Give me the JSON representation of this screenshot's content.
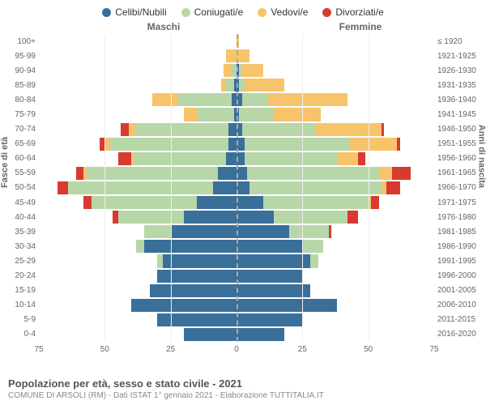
{
  "chart": {
    "type": "population-pyramid",
    "legend": [
      {
        "label": "Celibi/Nubili",
        "color": "#3a6f9a"
      },
      {
        "label": "Coniugati/e",
        "color": "#b7d7a8"
      },
      {
        "label": "Vedovi/e",
        "color": "#f7c46c"
      },
      {
        "label": "Divorziati/e",
        "color": "#d83a2f"
      }
    ],
    "header_left": "Maschi",
    "header_right": "Femmine",
    "y_axis_left_label": "Fasce di età",
    "y_axis_right_label": "Anni di nascita",
    "age_labels": [
      "100+",
      "95-99",
      "90-94",
      "85-89",
      "80-84",
      "75-79",
      "70-74",
      "65-69",
      "60-64",
      "55-59",
      "50-54",
      "45-49",
      "40-44",
      "35-39",
      "30-34",
      "25-29",
      "20-24",
      "15-19",
      "10-14",
      "5-9",
      "0-4"
    ],
    "birth_labels": [
      "≤ 1920",
      "1921-1925",
      "1926-1930",
      "1931-1935",
      "1936-1940",
      "1941-1945",
      "1946-1950",
      "1951-1955",
      "1956-1960",
      "1961-1965",
      "1966-1970",
      "1971-1975",
      "1976-1980",
      "1981-1985",
      "1986-1990",
      "1991-1995",
      "1996-2000",
      "2001-2005",
      "2006-2010",
      "2011-2015",
      "2016-2020"
    ],
    "x_ticks": [
      75,
      50,
      25,
      0,
      25,
      50,
      75
    ],
    "x_max": 75,
    "background_color": "#ffffff",
    "grid_color": "#eeeeee",
    "centerline_color": "#aaaaaa",
    "tick_fontsize": 10,
    "legend_fontsize": 12,
    "males": [
      {
        "single": 0,
        "married": 0,
        "widowed": 0,
        "divorced": 0
      },
      {
        "single": 0,
        "married": 0,
        "widowed": 4,
        "divorced": 0
      },
      {
        "single": 0,
        "married": 2,
        "widowed": 3,
        "divorced": 0
      },
      {
        "single": 1,
        "married": 3,
        "widowed": 2,
        "divorced": 0
      },
      {
        "single": 2,
        "married": 20,
        "widowed": 10,
        "divorced": 0
      },
      {
        "single": 1,
        "married": 14,
        "widowed": 5,
        "divorced": 0
      },
      {
        "single": 3,
        "married": 35,
        "widowed": 3,
        "divorced": 3
      },
      {
        "single": 3,
        "married": 45,
        "widowed": 2,
        "divorced": 2
      },
      {
        "single": 4,
        "married": 35,
        "widowed": 1,
        "divorced": 5
      },
      {
        "single": 7,
        "married": 50,
        "widowed": 1,
        "divorced": 3
      },
      {
        "single": 9,
        "married": 55,
        "widowed": 0,
        "divorced": 4
      },
      {
        "single": 15,
        "married": 40,
        "widowed": 0,
        "divorced": 3
      },
      {
        "single": 20,
        "married": 25,
        "widowed": 0,
        "divorced": 2
      },
      {
        "single": 25,
        "married": 10,
        "widowed": 0,
        "divorced": 0
      },
      {
        "single": 35,
        "married": 3,
        "widowed": 0,
        "divorced": 0
      },
      {
        "single": 28,
        "married": 2,
        "widowed": 0,
        "divorced": 0
      },
      {
        "single": 30,
        "married": 0,
        "widowed": 0,
        "divorced": 0
      },
      {
        "single": 33,
        "married": 0,
        "widowed": 0,
        "divorced": 0
      },
      {
        "single": 40,
        "married": 0,
        "widowed": 0,
        "divorced": 0
      },
      {
        "single": 30,
        "married": 0,
        "widowed": 0,
        "divorced": 0
      },
      {
        "single": 20,
        "married": 0,
        "widowed": 0,
        "divorced": 0
      }
    ],
    "females": [
      {
        "single": 0,
        "married": 0,
        "widowed": 1,
        "divorced": 0
      },
      {
        "single": 0,
        "married": 0,
        "widowed": 5,
        "divorced": 0
      },
      {
        "single": 1,
        "married": 1,
        "widowed": 8,
        "divorced": 0
      },
      {
        "single": 1,
        "married": 2,
        "widowed": 15,
        "divorced": 0
      },
      {
        "single": 2,
        "married": 10,
        "widowed": 30,
        "divorced": 0
      },
      {
        "single": 1,
        "married": 13,
        "widowed": 18,
        "divorced": 0
      },
      {
        "single": 2,
        "married": 28,
        "widowed": 25,
        "divorced": 1
      },
      {
        "single": 3,
        "married": 40,
        "widowed": 18,
        "divorced": 1
      },
      {
        "single": 3,
        "married": 35,
        "widowed": 8,
        "divorced": 3
      },
      {
        "single": 4,
        "married": 50,
        "widowed": 5,
        "divorced": 7
      },
      {
        "single": 5,
        "married": 50,
        "widowed": 2,
        "divorced": 5
      },
      {
        "single": 10,
        "married": 40,
        "widowed": 1,
        "divorced": 3
      },
      {
        "single": 14,
        "married": 28,
        "widowed": 0,
        "divorced": 4
      },
      {
        "single": 20,
        "married": 15,
        "widowed": 0,
        "divorced": 1
      },
      {
        "single": 25,
        "married": 8,
        "widowed": 0,
        "divorced": 0
      },
      {
        "single": 28,
        "married": 3,
        "widowed": 0,
        "divorced": 0
      },
      {
        "single": 25,
        "married": 0,
        "widowed": 0,
        "divorced": 0
      },
      {
        "single": 28,
        "married": 0,
        "widowed": 0,
        "divorced": 0
      },
      {
        "single": 38,
        "married": 0,
        "widowed": 0,
        "divorced": 0
      },
      {
        "single": 25,
        "married": 0,
        "widowed": 0,
        "divorced": 0
      },
      {
        "single": 18,
        "married": 0,
        "widowed": 0,
        "divorced": 0
      }
    ]
  },
  "footer": {
    "title": "Popolazione per età, sesso e stato civile - 2021",
    "subtitle": "COMUNE DI ARSOLI (RM) - Dati ISTAT 1° gennaio 2021 - Elaborazione TUTTITALIA.IT"
  }
}
